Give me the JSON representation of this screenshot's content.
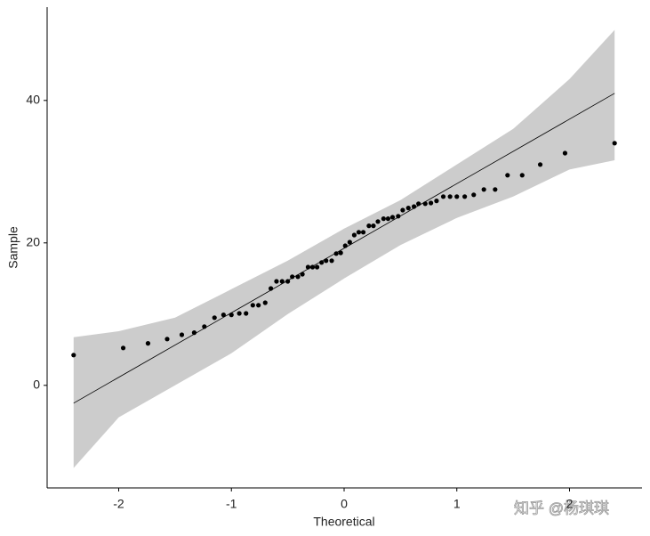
{
  "chart_data": {
    "type": "qq",
    "xlabel": "Theoretical",
    "ylabel": "Sample",
    "xlim": [
      -2.635,
      2.643
    ],
    "ylim": [
      -14.4,
      53.1
    ],
    "xticks": [
      -2,
      -1,
      0,
      1,
      2
    ],
    "yticks": [
      0,
      20,
      40
    ],
    "grid": false,
    "band": {
      "color": "#cccccc",
      "x": [
        -2.4,
        -2,
        -1.5,
        -1,
        -0.5,
        0,
        0.5,
        1,
        1.5,
        2,
        2.4
      ],
      "upper": [
        6.75,
        7.6,
        9.5,
        13.5,
        17.5,
        22,
        26,
        31,
        36,
        43,
        49.9
      ],
      "lower": [
        -11.6,
        -4.5,
        0,
        4.5,
        10,
        15,
        19.7,
        23.5,
        26.5,
        30.3,
        31.6
      ]
    },
    "reference_line": {
      "color": "#000000",
      "x": [
        -2.4,
        2.4
      ],
      "y": [
        -2.5,
        41
      ]
    },
    "points": {
      "color": "#000000",
      "x": [
        -2.4,
        -1.96,
        -1.74,
        -1.57,
        -1.44,
        -1.33,
        -1.24,
        -1.15,
        -1.07,
        -1.0,
        -0.93,
        -0.87,
        -0.81,
        -0.76,
        -0.7,
        -0.65,
        -0.6,
        -0.55,
        -0.5,
        -0.46,
        -0.41,
        -0.37,
        -0.32,
        -0.28,
        -0.24,
        -0.2,
        -0.16,
        -0.11,
        -0.07,
        -0.03,
        0.01,
        0.05,
        0.09,
        0.13,
        0.17,
        0.22,
        0.26,
        0.3,
        0.35,
        0.39,
        0.43,
        0.48,
        0.52,
        0.57,
        0.62,
        0.66,
        0.72,
        0.77,
        0.82,
        0.88,
        0.94,
        1.0,
        1.07,
        1.15,
        1.24,
        1.34,
        1.45,
        1.58,
        1.74,
        1.96,
        2.4
      ],
      "y": [
        4.25,
        5.25,
        5.9,
        6.5,
        7.1,
        7.4,
        8.25,
        9.5,
        9.9,
        9.9,
        10.1,
        10.1,
        11.25,
        11.25,
        11.6,
        13.6,
        14.6,
        14.6,
        14.6,
        15.25,
        15.25,
        15.6,
        16.6,
        16.6,
        16.6,
        17.25,
        17.5,
        17.5,
        18.5,
        18.6,
        19.6,
        20.1,
        21.1,
        21.5,
        21.5,
        22.4,
        22.4,
        23.0,
        23.4,
        23.4,
        23.6,
        23.75,
        24.6,
        24.9,
        25.1,
        25.5,
        25.5,
        25.6,
        25.9,
        26.5,
        26.5,
        26.5,
        26.5,
        26.75,
        27.5,
        27.5,
        29.5,
        29.5,
        31.0,
        32.6,
        34.0
      ]
    },
    "watermark": "知乎 @杨琪琪"
  }
}
